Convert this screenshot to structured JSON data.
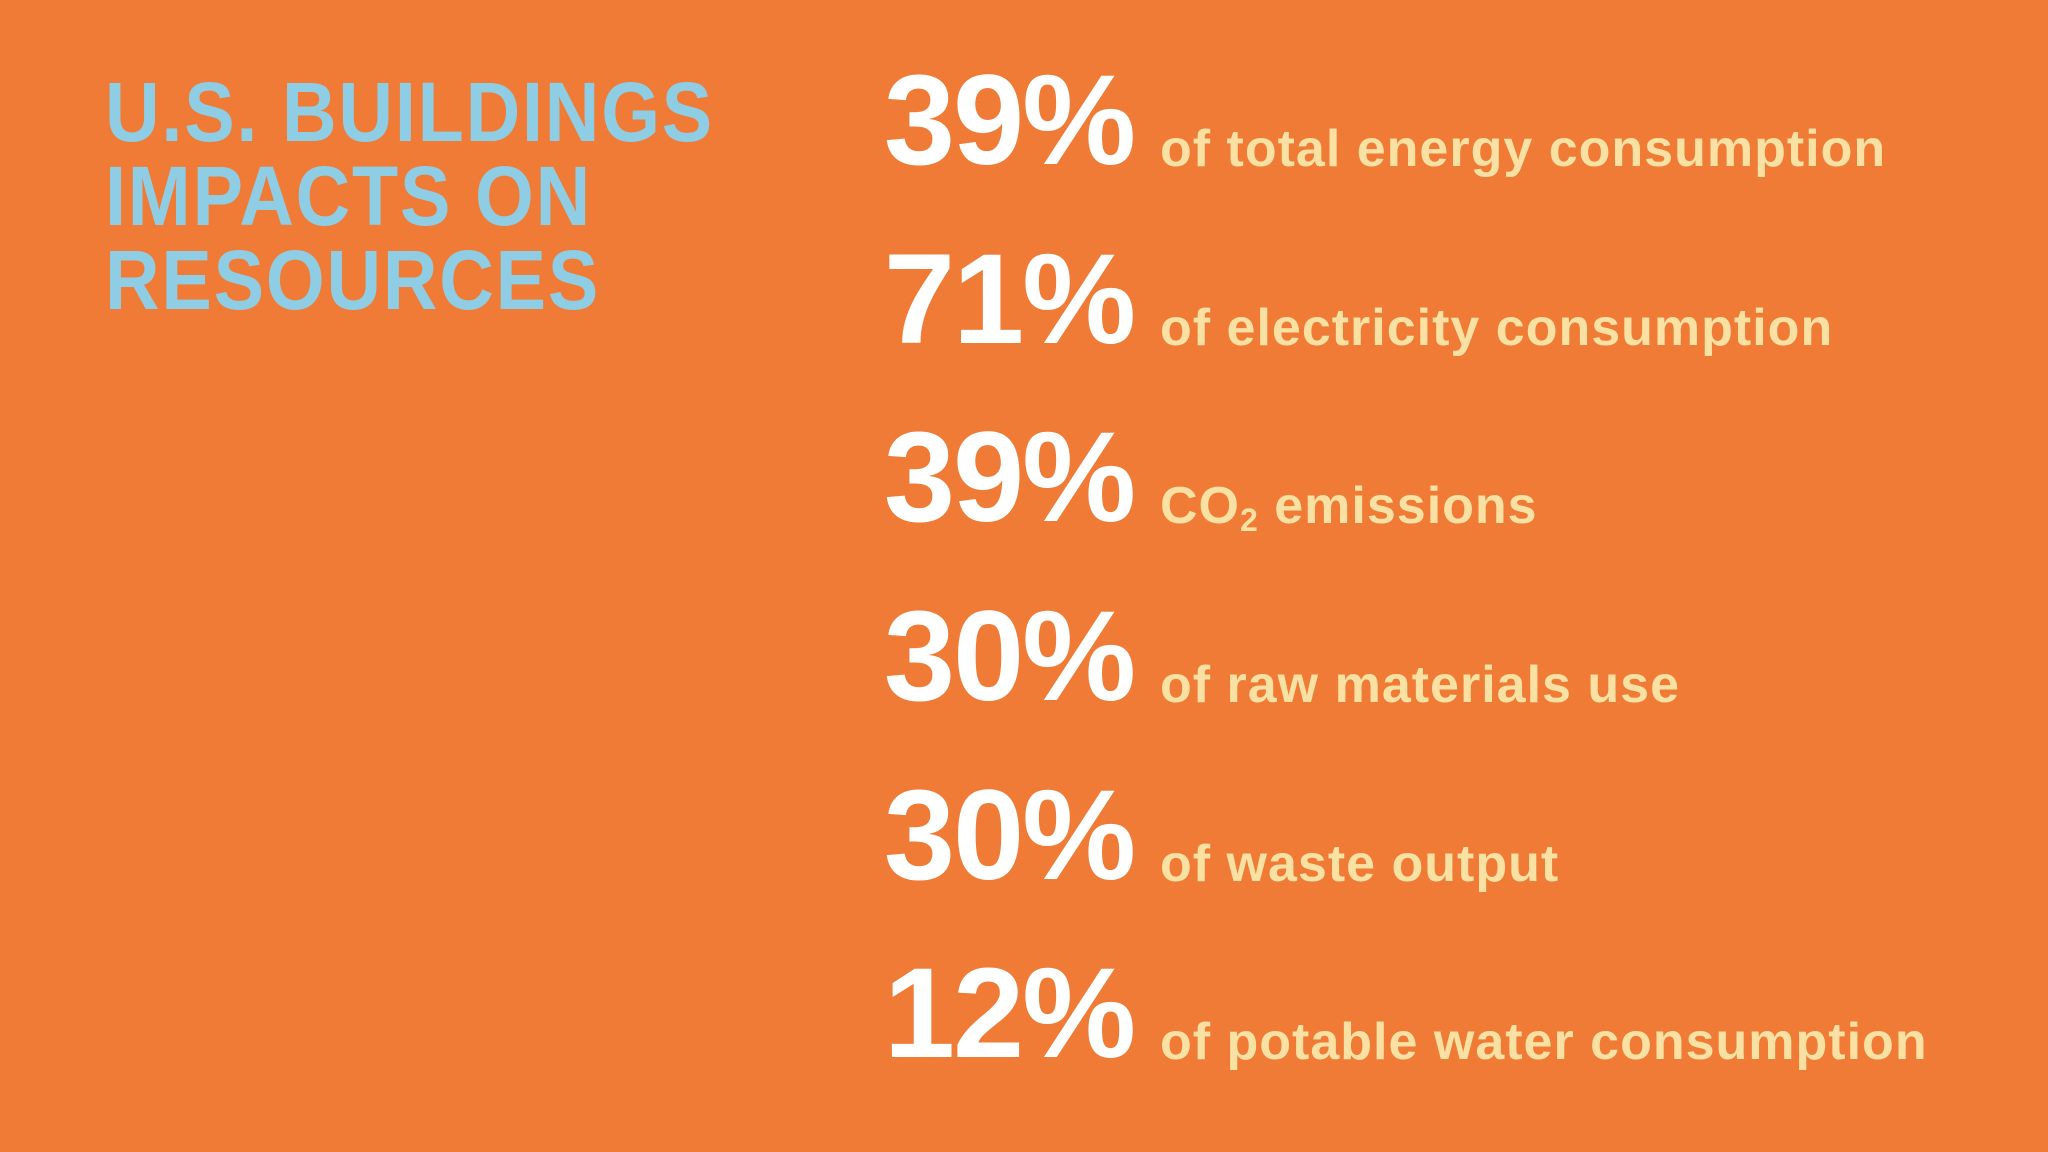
{
  "heading": {
    "line1": "U.S. BUILDINGS",
    "line2": "IMPACTS ON",
    "line3": "RESOURCES"
  },
  "stats": [
    {
      "value": "39%",
      "label": "of total energy consumption"
    },
    {
      "value": "71%",
      "label": "of electricity consumption"
    },
    {
      "value": "39%",
      "label_main": "CO",
      "label_sub": "2",
      "label_rest": " emissions"
    },
    {
      "value": "30%",
      "label": "of raw materials use"
    },
    {
      "value": "30%",
      "label": "of waste output"
    },
    {
      "value": "12%",
      "label": "of potable water consumption"
    }
  ],
  "colors": {
    "background": "#f07b36",
    "heading": "#8fcde4",
    "percent": "#ffffff",
    "description": "#f8e1a2"
  }
}
